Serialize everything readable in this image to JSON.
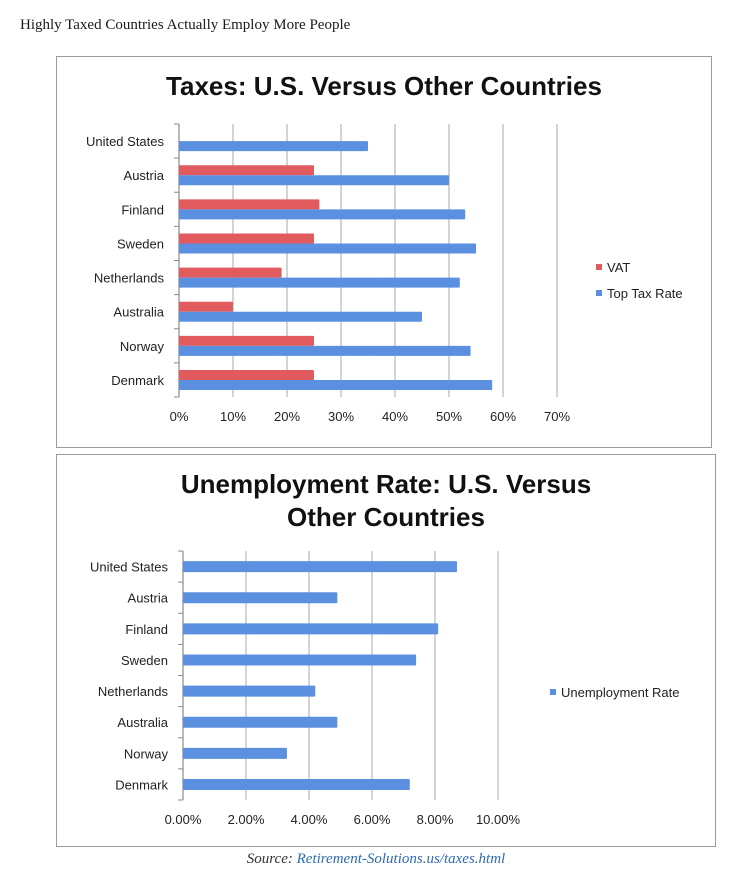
{
  "page": {
    "heading": "Highly Taxed Countries Actually Employ More People",
    "source_label": "Source:",
    "source_link": "Retirement-Solutions.us/taxes.html"
  },
  "chart_data": [
    {
      "type": "bar",
      "orientation": "horizontal",
      "title": "Taxes: U.S. Versus Other Countries",
      "categories": [
        "United States",
        "Austria",
        "Finland",
        "Sweden",
        "Netherlands",
        "Australia",
        "Norway",
        "Denmark"
      ],
      "series": [
        {
          "name": "VAT",
          "color": "#e05a5e",
          "values": [
            null,
            25,
            26,
            25,
            19,
            10,
            25,
            25
          ]
        },
        {
          "name": "Top Tax Rate",
          "color": "#5b8fe0",
          "values": [
            35,
            50,
            53,
            55,
            52,
            45,
            54,
            58
          ]
        }
      ],
      "xlim": [
        0,
        70
      ],
      "xticks": [
        "0%",
        "10%",
        "20%",
        "30%",
        "40%",
        "50%",
        "60%",
        "70%"
      ],
      "grid": "vertical",
      "legend": "right"
    },
    {
      "type": "bar",
      "orientation": "horizontal",
      "title": "Unemployment Rate: U.S. Versus Other Countries",
      "categories": [
        "United States",
        "Austria",
        "Finland",
        "Sweden",
        "Netherlands",
        "Australia",
        "Norway",
        "Denmark"
      ],
      "series": [
        {
          "name": "Unemployment Rate",
          "color": "#5b8fe0",
          "values": [
            8.7,
            4.9,
            8.1,
            7.4,
            4.2,
            4.9,
            3.3,
            7.2
          ]
        }
      ],
      "xlim": [
        0,
        10
      ],
      "xticks": [
        "0.00%",
        "2.00%",
        "4.00%",
        "6.00%",
        "8.00%",
        "10.00%"
      ],
      "grid": "vertical",
      "legend": "right"
    }
  ]
}
